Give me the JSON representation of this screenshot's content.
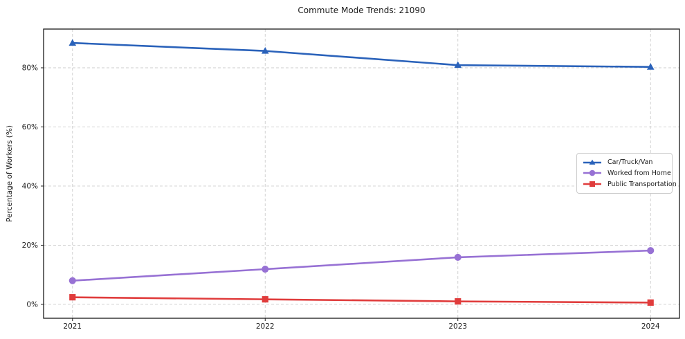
{
  "chart_data": {
    "type": "line",
    "title": "Commute Mode Trends: 21090",
    "xlabel": "",
    "ylabel": "Percentage of Workers (%)",
    "x": [
      2021,
      2022,
      2023,
      2024
    ],
    "x_tick_labels": [
      "2021",
      "2022",
      "2023",
      "2024"
    ],
    "y_ticks": [
      0,
      20,
      40,
      60,
      80
    ],
    "y_tick_labels": [
      "0%",
      "20%",
      "40%",
      "60%",
      "80%"
    ],
    "xlim": [
      2020.85,
      2024.15
    ],
    "ylim": [
      -4.7,
      93.1
    ],
    "grid": true,
    "grid_style": "dashed",
    "grid_color": "#cccccc",
    "legend_position": "right-middle",
    "series": [
      {
        "name": "Car/Truck/Van",
        "color": "#2a62ba",
        "marker": "triangle",
        "values": [
          88.4,
          85.7,
          80.9,
          80.3
        ]
      },
      {
        "name": "Worked from Home",
        "color": "#9771d4",
        "marker": "circle",
        "values": [
          8.0,
          11.9,
          15.9,
          18.2
        ]
      },
      {
        "name": "Public Transportation",
        "color": "#e03c3c",
        "marker": "square",
        "values": [
          2.4,
          1.7,
          1.0,
          0.6
        ]
      }
    ]
  }
}
